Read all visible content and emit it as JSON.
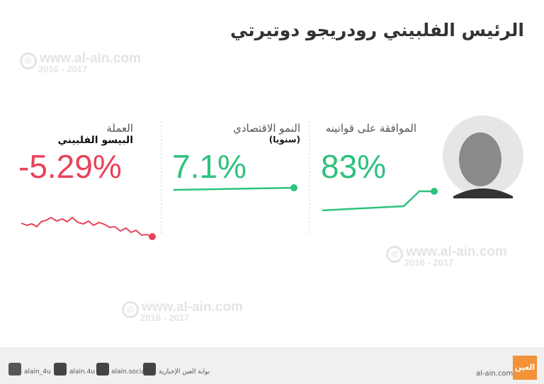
{
  "header": {
    "title": "الرئيس الفلبيني رودريجو دوتيرتي"
  },
  "watermark": {
    "site": "www.al-ain.com",
    "years": "2016 - 2017"
  },
  "panels": [
    {
      "label": "العملة",
      "sublabel": "البيسو الفلبيني",
      "value": "-5.29%"
    },
    {
      "label": "النمو الاقتصادي",
      "sublabel": "(سنويا)",
      "value": "7.1%"
    },
    {
      "label": "الموافقة على قوانينه",
      "value": "83%"
    }
  ],
  "footer": {
    "twitter": "alain_4u",
    "instagram": "alain.4u",
    "facebook": "alain.social",
    "youtube": "بوابة العين الإخبارية",
    "site": "al-ain.com",
    "logo": "العين"
  }
}
